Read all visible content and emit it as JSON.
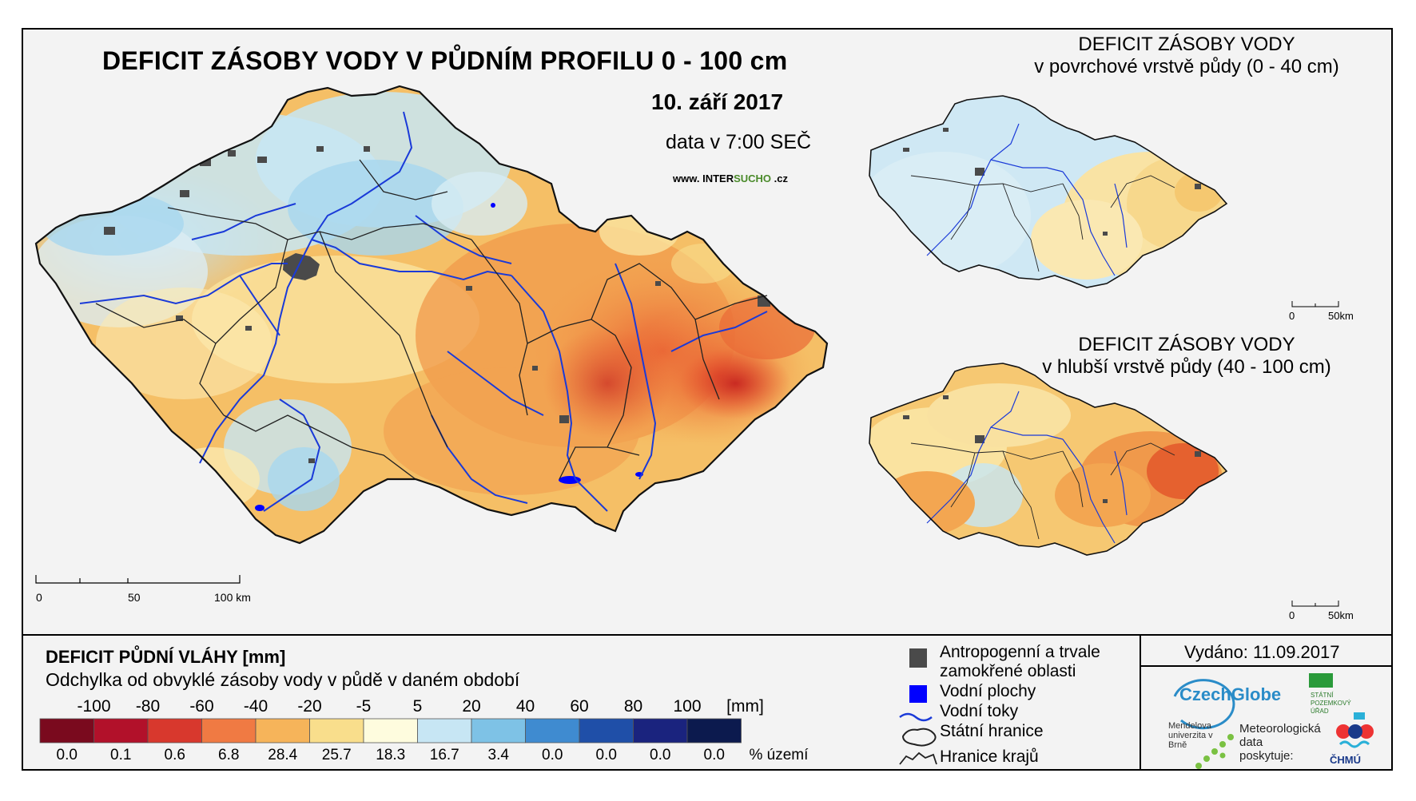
{
  "title": "DEFICIT ZÁSOBY VODY V PŮDNÍM PROFILU 0 - 100 cm",
  "date": "10. září 2017",
  "data_time": "data v 7:00 SEČ",
  "website": {
    "prefix": "www. INTER",
    "mid": "SUCHO",
    "suffix": " .cz"
  },
  "main_scale": {
    "labels": [
      "0",
      "50",
      "100 km"
    ]
  },
  "inset_top": {
    "title_line1": "DEFICIT ZÁSOBY VODY",
    "title_line2": "v povrchové vrstvě půdy (0 - 40 cm)",
    "scale_labels": [
      "0",
      "50km"
    ]
  },
  "inset_bottom": {
    "title_line1": "DEFICIT ZÁSOBY VODY",
    "title_line2": "v hlubší vrstvě půdy (40 - 100 cm)",
    "scale_labels": [
      "0",
      "50km"
    ]
  },
  "legend": {
    "title": "DEFICIT PŮDNÍ VLÁHY [mm]",
    "subtitle": "Odchylka od obvyklé zásoby vody v půdě v daném období",
    "breaks": [
      "-100",
      "-80",
      "-60",
      "-40",
      "-20",
      "-5",
      "5",
      "20",
      "40",
      "60",
      "80",
      "100"
    ],
    "unit": "[mm]",
    "colors": [
      "#7a0a1e",
      "#b2112a",
      "#d8382d",
      "#f07a43",
      "#f6b45a",
      "#f9de8c",
      "#fefcde",
      "#c7e6f4",
      "#7ec2e6",
      "#3f8bd0",
      "#1f4fa8",
      "#1a237e",
      "#0c1a4e"
    ],
    "percentages": [
      "0.0",
      "0.1",
      "0.6",
      "6.8",
      "28.4",
      "25.7",
      "18.3",
      "16.7",
      "3.4",
      "0.0",
      "0.0",
      "0.0",
      "0.0"
    ],
    "percent_label": "% území"
  },
  "symbols": {
    "urban_line1": "Antropogenní a trvale",
    "urban_line2": "zamokřené oblasti",
    "water_bodies": "Vodní plochy",
    "rivers": "Vodní toky",
    "state_border": "Státní hranice",
    "region_border": "Hranice krajů"
  },
  "issued": "Vydáno: 11.09.2017",
  "logos": {
    "czechglobe": "CzechGlobe",
    "mendelu": "Mendelova univerzita v Brně",
    "spu": "STÁTNÍ POZEMKOVÝ ÚŘAD",
    "meteo": "Meteorologická data poskytuje:",
    "chmu": "ČHMÚ"
  },
  "colors": {
    "urban": "#4a4a4a",
    "water": "#0000ff",
    "river": "#1a3ad8",
    "border": "#222222"
  }
}
